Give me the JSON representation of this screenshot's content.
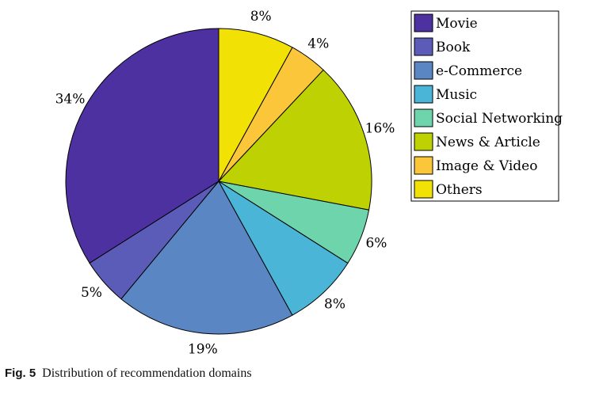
{
  "chart_data": {
    "type": "pie",
    "categories": [
      "Movie",
      "Book",
      "e-Commerce",
      "Music",
      "Social Networking",
      "News & Article",
      "Image & Video",
      "Others"
    ],
    "values": [
      34,
      5,
      19,
      8,
      6,
      16,
      4,
      8
    ],
    "labels": [
      "34%",
      "5%",
      "19%",
      "8%",
      "6%",
      "16%",
      "4%",
      "8%"
    ],
    "colors": [
      "#4d31a0",
      "#5a5cb8",
      "#5a86c3",
      "#4ab5d6",
      "#6dd4ab",
      "#bed102",
      "#fbc63a",
      "#f2e104"
    ],
    "start": "top",
    "direction": "counter-clockwise",
    "legend_position": "top-right"
  },
  "caption": {
    "label": "Fig. 5",
    "text": "Distribution of recommendation domains"
  }
}
